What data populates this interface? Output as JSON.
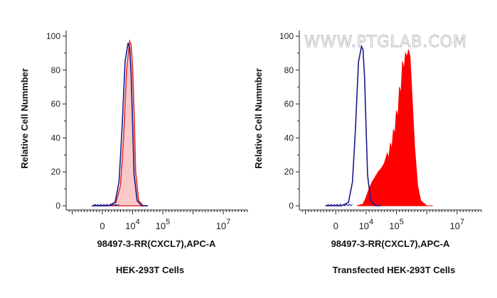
{
  "watermark": "WWW.PTGLAB.COM",
  "colors": {
    "control_line": "#1a1a8c",
    "sample_line": "#e03030",
    "sample_fill_light": "#f9c9c9",
    "sample_fill_solid": "#ff0000",
    "axis": "#222222"
  },
  "chart_data": [
    {
      "type": "area",
      "ylabel": "Relative Cell Nummber",
      "xlabel": "98497-3-RR(CXCL7),APC-A",
      "caption": "HEK-293T Cells",
      "ylim": [
        0,
        100
      ],
      "y_ticks": [
        "0",
        "20",
        "40",
        "60",
        "80",
        "100"
      ],
      "x_tick_labels": [
        {
          "base": "0",
          "exp": "",
          "value": 0
        },
        {
          "base": "10",
          "exp": "4",
          "value": 1
        },
        {
          "base": "10",
          "exp": "5",
          "value": 2
        },
        {
          "base": "10",
          "exp": "7",
          "value": 4
        }
      ],
      "x_range": [
        -1.2,
        4.8
      ],
      "grid": false,
      "series": [
        {
          "style": "filled_light",
          "x": [
            -0.35,
            0.2,
            0.45,
            0.6,
            0.7,
            0.8,
            0.9,
            0.95,
            1.0,
            1.05,
            1.1,
            1.2,
            1.35,
            1.5
          ],
          "y": [
            0,
            0,
            2,
            12,
            40,
            80,
            97,
            95,
            82,
            55,
            20,
            3,
            0,
            0
          ]
        },
        {
          "style": "line_control",
          "x": [
            -0.35,
            0.2,
            0.42,
            0.55,
            0.65,
            0.75,
            0.85,
            0.9,
            0.95,
            1.0,
            1.05,
            1.15,
            1.3,
            1.5
          ],
          "y": [
            0,
            0,
            2,
            14,
            45,
            85,
            96,
            93,
            78,
            48,
            18,
            3,
            0,
            0
          ]
        }
      ]
    },
    {
      "type": "area",
      "ylabel": "Relative Cell Nummber",
      "xlabel": "98497-3-RR(CXCL7),APC-A",
      "caption": "Transfected HEK-293T Cells",
      "ylim": [
        0,
        100
      ],
      "y_ticks": [
        "0",
        "20",
        "40",
        "60",
        "80",
        "100"
      ],
      "x_tick_labels": [
        {
          "base": "0",
          "exp": "",
          "value": 0
        },
        {
          "base": "10",
          "exp": "4",
          "value": 1
        },
        {
          "base": "10",
          "exp": "5",
          "value": 2
        },
        {
          "base": "10",
          "exp": "7",
          "value": 4
        }
      ],
      "x_range": [
        -1.2,
        4.8
      ],
      "grid": false,
      "series": [
        {
          "style": "filled_solid",
          "x": [
            0.7,
            0.9,
            1.0,
            1.1,
            1.2,
            1.3,
            1.4,
            1.5,
            1.6,
            1.7,
            1.75,
            1.8,
            1.85,
            1.9,
            1.95,
            2.0,
            2.05,
            2.1,
            2.15,
            2.2,
            2.25,
            2.3,
            2.35,
            2.4,
            2.45,
            2.5,
            2.6,
            2.7,
            2.8,
            3.0,
            3.2
          ],
          "y": [
            0,
            1,
            5,
            10,
            14,
            17,
            20,
            22,
            25,
            31,
            28,
            37,
            33,
            45,
            42,
            56,
            52,
            70,
            66,
            85,
            80,
            90,
            88,
            92,
            88,
            70,
            35,
            12,
            3,
            0,
            0
          ]
        },
        {
          "style": "line_control",
          "x": [
            -0.35,
            0.2,
            0.42,
            0.55,
            0.65,
            0.75,
            0.85,
            0.9,
            0.95,
            1.0,
            1.05,
            1.15,
            1.3,
            1.5
          ],
          "y": [
            0,
            0,
            2,
            14,
            45,
            85,
            94,
            92,
            76,
            46,
            18,
            3,
            0,
            0
          ]
        }
      ]
    }
  ]
}
